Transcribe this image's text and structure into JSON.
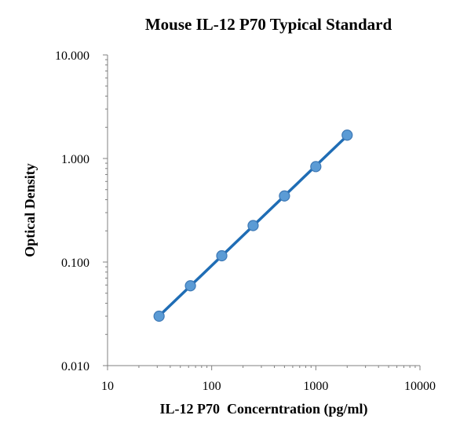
{
  "chart_data": {
    "type": "scatter",
    "title": "Mouse IL-12 P70 Typical Standard",
    "xlabel": "IL-12 P70  Concerntration (pg/ml)",
    "ylabel": "Optical Density",
    "x_scale": "log",
    "y_scale": "log",
    "xlim": [
      10,
      10000
    ],
    "ylim": [
      0.01,
      10
    ],
    "x_ticks": [
      10,
      100,
      1000,
      10000
    ],
    "x_tick_labels": [
      "10",
      "100",
      "1000",
      "10000"
    ],
    "y_ticks": [
      0.01,
      0.1,
      1,
      10
    ],
    "y_tick_labels": [
      "0.010",
      "0.100",
      "1.000",
      "10.000"
    ],
    "grid": false,
    "legend": "none",
    "series": [
      {
        "x": [
          31.25,
          62.5,
          125,
          250,
          500,
          1000,
          2000
        ],
        "y": [
          0.03,
          0.059,
          0.115,
          0.225,
          0.435,
          0.835,
          1.68
        ],
        "marker_color": "#5b9bd5",
        "line_color": "#1f6db5",
        "fit": "power-law trendline"
      }
    ]
  }
}
